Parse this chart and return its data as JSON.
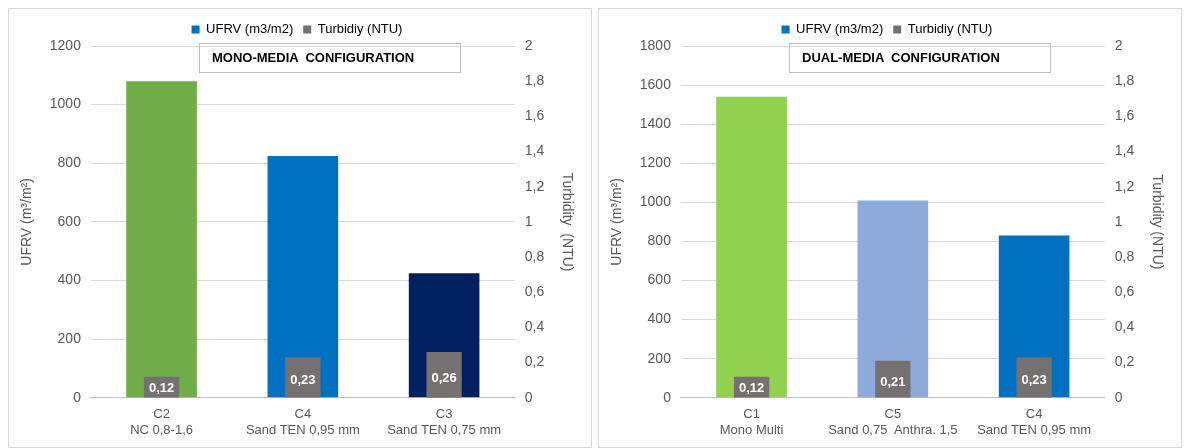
{
  "chart_data": [
    {
      "type": "bar",
      "title": "MONO-MEDIA  CONFIGURATION",
      "categories": [
        "C2\nNC 0,8-1,6",
        "C4\nSand TEN 0,95 mm",
        "C3\nSand TEN 0,75 mm"
      ],
      "series": [
        {
          "name": "UFRV (m3/m2)",
          "color": "#0070c0",
          "colors": [
            "#70ad47",
            "#0070c0",
            "#002060"
          ],
          "values": [
            1080,
            825,
            425
          ]
        },
        {
          "name": "Turbidiy (NTU)",
          "color": "#767171",
          "axis": "y2",
          "values": [
            0.12,
            0.23,
            0.26
          ],
          "value_labels": [
            "0,12",
            "0,23",
            "0,26"
          ]
        }
      ],
      "ylabel": "UFRV (m³/m²)",
      "y2label": "Turbidity  (NTU)",
      "ylim": [
        0,
        1200
      ],
      "yticks": [
        0,
        200,
        400,
        600,
        800,
        1000,
        1200
      ],
      "y2lim": [
        0,
        2
      ],
      "y2ticks": [
        0,
        {
          "value": 0.2,
          "label": "0,2"
        },
        {
          "value": 0.4,
          "label": "0,4"
        },
        {
          "value": 0.6,
          "label": "0,6"
        },
        {
          "value": 0.8,
          "label": "0,8"
        },
        1,
        {
          "value": 1.2,
          "label": "1,2"
        },
        {
          "value": 1.4,
          "label": "1,4"
        },
        {
          "value": 1.6,
          "label": "1,6"
        },
        {
          "value": 1.8,
          "label": "1,8"
        },
        2
      ],
      "grid": "y",
      "legend": "top"
    },
    {
      "type": "bar",
      "title": "DUAL-MEDIA  CONFIGURATION",
      "categories": [
        "C1\nMono Multi",
        "C5\nSand 0,75  Anthra. 1,5",
        "C4\nSand TEN 0,95 mm"
      ],
      "series": [
        {
          "name": "UFRV (m3/m2)",
          "color": "#0070c0",
          "colors": [
            "#92d050",
            "#8eaadb",
            "#0070c0"
          ],
          "values": [
            1540,
            1010,
            830
          ]
        },
        {
          "name": "Turbidiy (NTU)",
          "color": "#767171",
          "axis": "y2",
          "values": [
            0.12,
            0.21,
            0.23
          ],
          "value_labels": [
            "0,12",
            "0,21",
            "0,23"
          ]
        }
      ],
      "ylabel": "UFRV (m³/m²)",
      "y2label": "Turbidity (NTU)",
      "ylim": [
        0,
        1800
      ],
      "yticks": [
        0,
        200,
        400,
        600,
        800,
        1000,
        1200,
        1400,
        1600,
        1800
      ],
      "y2lim": [
        0,
        2
      ],
      "y2ticks": [
        0,
        {
          "value": 0.2,
          "label": "0,2"
        },
        {
          "value": 0.4,
          "label": "0,4"
        },
        {
          "value": 0.6,
          "label": "0,6"
        },
        {
          "value": 0.8,
          "label": "0,8"
        },
        1,
        {
          "value": 1.2,
          "label": "1,2"
        },
        {
          "value": 1.4,
          "label": "1,4"
        },
        {
          "value": 1.6,
          "label": "1,6"
        },
        {
          "value": 1.8,
          "label": "1,8"
        },
        2
      ],
      "grid": "y",
      "legend": "top"
    }
  ]
}
